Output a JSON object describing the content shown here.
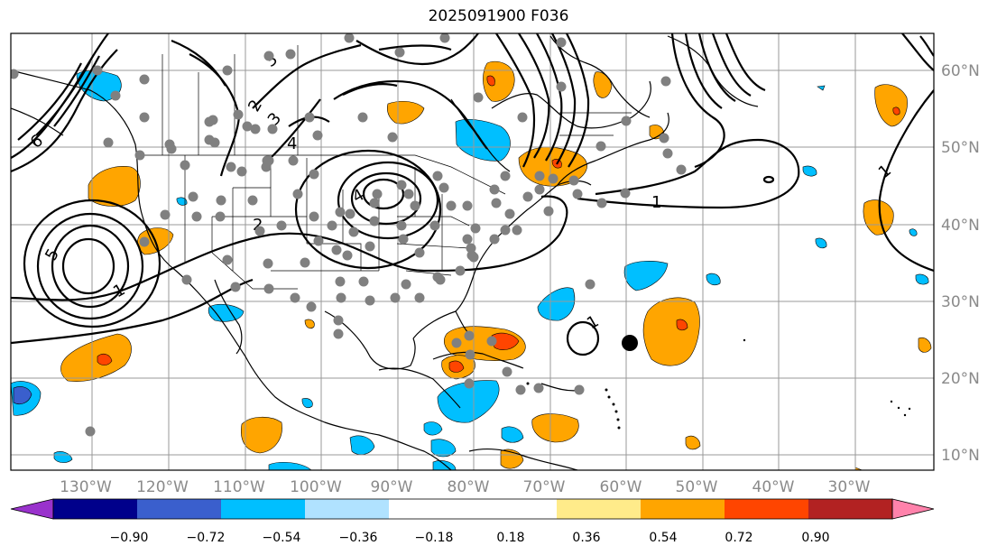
{
  "title": "2025091900 F036",
  "lat_labels": [
    "60°N",
    "50°N",
    "40°N",
    "30°N",
    "20°N",
    "10°N"
  ],
  "lon_labels": [
    "130°W",
    "120°W",
    "110°W",
    "100°W",
    "90°W",
    "80°W",
    "70°W",
    "60°W",
    "50°W",
    "40°W",
    "30°W"
  ],
  "contour_labels": [
    "1",
    "2",
    "3",
    "4",
    "5",
    "6",
    "1",
    "1",
    "1",
    "2",
    "3",
    "4"
  ],
  "colorbar": {
    "colors": [
      "#9932cc",
      "#00008b",
      "#3a5fcd",
      "#00bfff",
      "#b0e2ff",
      "#ffffff",
      "#ffffff",
      "#ffeb8a",
      "#ffa500",
      "#ff4500",
      "#b22222",
      "#ff82ab"
    ],
    "tick_labels": [
      "−0.90",
      "−0.72",
      "−0.54",
      "−0.36",
      "−0.18",
      "0.18",
      "0.36",
      "0.54",
      "0.72",
      "0.90"
    ]
  },
  "colors": {
    "positive_low": "#ffa500",
    "positive_mid": "#ff4500",
    "positive_high": "#b22222",
    "negative_low": "#00bfff",
    "negative_mid": "#3a5fcd",
    "grid": "#999999",
    "station": "#808080"
  }
}
